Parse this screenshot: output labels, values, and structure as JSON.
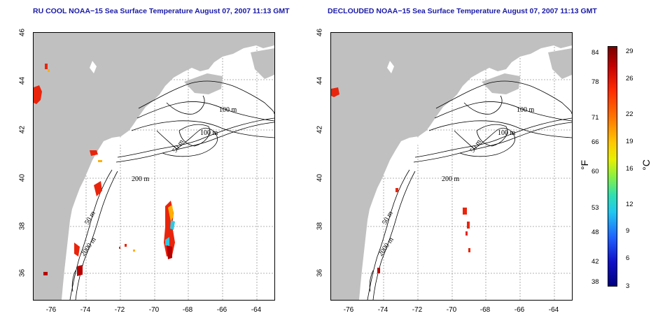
{
  "titles": {
    "left": "RU COOL NOAA−15 Sea Surface Temperature August 07, 2007 11:13 GMT",
    "right": "DECLOUDED NOAA−15 Sea Surface Temperature August 07, 2007 11:13 GMT"
  },
  "axes": {
    "lat_ticks": [
      "46",
      "44",
      "42",
      "40",
      "38",
      "36"
    ],
    "lon_ticks": [
      "-76",
      "-74",
      "-72",
      "-70",
      "-68",
      "-66",
      "-64"
    ]
  },
  "contour_labels": {
    "left": [
      "100 m",
      "100 m",
      "50 m",
      "200 m",
      "50 m",
      "2000 m"
    ],
    "right": [
      "100 m",
      "100 m",
      "50 m",
      "200 m",
      "50 m",
      "2000 m"
    ]
  },
  "colorbar": {
    "fahrenheit_ticks": [
      "84",
      "78",
      "71",
      "66",
      "60",
      "53",
      "48",
      "42",
      "38"
    ],
    "celsius_ticks": [
      "29",
      "26",
      "22",
      "19",
      "16",
      "12",
      "9",
      "6",
      "3"
    ],
    "unit_f": "°F",
    "unit_c": "°C"
  },
  "colors": {
    "land": "#c0c0c0",
    "title": "#1a1aa6",
    "grid": "#9a9a9a",
    "sst_warm": "#e8250c",
    "sst_hot": "#b80000",
    "sst_mid": "#ffb000",
    "sst_cool": "#30c8e0"
  }
}
